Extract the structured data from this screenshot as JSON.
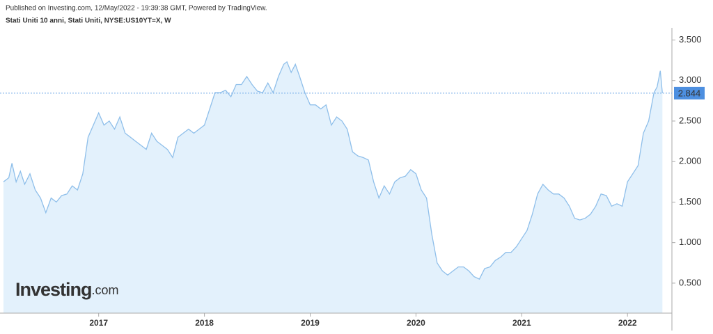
{
  "published": "Published on Investing.com, 12/May/2022 - 19:39:38 GMT, Powered by TradingView.",
  "logo": "Investing",
  "logo_suffix": ".com",
  "chart_data": {
    "type": "area",
    "title": "Stati Uniti 10 anni, Stati Uniti, NYSE:US10YT=X, W",
    "line_color": "#8fbfea",
    "fill_color": "#e3f1fc",
    "x": [
      2016.1,
      2016.15,
      2016.18,
      2016.22,
      2016.26,
      2016.3,
      2016.35,
      2016.4,
      2016.45,
      2016.5,
      2016.55,
      2016.6,
      2016.65,
      2016.7,
      2016.75,
      2016.8,
      2016.85,
      2016.9,
      2016.95,
      2017.0,
      2017.05,
      2017.1,
      2017.15,
      2017.2,
      2017.25,
      2017.3,
      2017.35,
      2017.4,
      2017.45,
      2017.5,
      2017.55,
      2017.6,
      2017.65,
      2017.7,
      2017.75,
      2017.8,
      2017.85,
      2017.9,
      2017.95,
      2018.0,
      2018.05,
      2018.1,
      2018.15,
      2018.2,
      2018.25,
      2018.3,
      2018.35,
      2018.4,
      2018.45,
      2018.5,
      2018.55,
      2018.6,
      2018.65,
      2018.7,
      2018.75,
      2018.78,
      2018.82,
      2018.86,
      2018.9,
      2018.95,
      2019.0,
      2019.05,
      2019.1,
      2019.15,
      2019.2,
      2019.25,
      2019.3,
      2019.35,
      2019.4,
      2019.45,
      2019.5,
      2019.55,
      2019.6,
      2019.65,
      2019.7,
      2019.75,
      2019.8,
      2019.85,
      2019.9,
      2019.95,
      2020.0,
      2020.05,
      2020.1,
      2020.15,
      2020.2,
      2020.25,
      2020.3,
      2020.35,
      2020.4,
      2020.45,
      2020.5,
      2020.55,
      2020.6,
      2020.65,
      2020.7,
      2020.75,
      2020.8,
      2020.85,
      2020.9,
      2020.95,
      2021.0,
      2021.05,
      2021.1,
      2021.15,
      2021.2,
      2021.25,
      2021.3,
      2021.35,
      2021.4,
      2021.45,
      2021.5,
      2021.55,
      2021.6,
      2021.65,
      2021.7,
      2021.75,
      2021.8,
      2021.85,
      2021.9,
      2021.95,
      2022.0,
      2022.05,
      2022.1,
      2022.15,
      2022.2,
      2022.25,
      2022.28,
      2022.31,
      2022.33
    ],
    "values": [
      1.75,
      1.8,
      1.98,
      1.75,
      1.88,
      1.72,
      1.85,
      1.65,
      1.55,
      1.37,
      1.55,
      1.5,
      1.58,
      1.6,
      1.7,
      1.65,
      1.85,
      2.3,
      2.45,
      2.6,
      2.45,
      2.5,
      2.4,
      2.55,
      2.35,
      2.3,
      2.25,
      2.2,
      2.15,
      2.35,
      2.25,
      2.2,
      2.15,
      2.05,
      2.3,
      2.35,
      2.4,
      2.35,
      2.4,
      2.45,
      2.65,
      2.85,
      2.85,
      2.88,
      2.8,
      2.95,
      2.95,
      3.05,
      2.95,
      2.87,
      2.85,
      2.97,
      2.85,
      3.05,
      3.2,
      3.23,
      3.1,
      3.2,
      3.05,
      2.85,
      2.7,
      2.7,
      2.65,
      2.7,
      2.45,
      2.55,
      2.5,
      2.4,
      2.12,
      2.07,
      2.05,
      2.02,
      1.75,
      1.55,
      1.7,
      1.6,
      1.75,
      1.8,
      1.82,
      1.9,
      1.85,
      1.65,
      1.55,
      1.1,
      0.75,
      0.65,
      0.6,
      0.65,
      0.7,
      0.7,
      0.65,
      0.58,
      0.55,
      0.68,
      0.7,
      0.78,
      0.82,
      0.88,
      0.88,
      0.95,
      1.05,
      1.15,
      1.35,
      1.6,
      1.72,
      1.65,
      1.6,
      1.6,
      1.55,
      1.45,
      1.3,
      1.28,
      1.3,
      1.35,
      1.45,
      1.6,
      1.58,
      1.45,
      1.48,
      1.45,
      1.75,
      1.85,
      1.95,
      2.35,
      2.5,
      2.85,
      2.92,
      3.12,
      2.844
    ],
    "last_value": 2.844,
    "xlim": [
      2016.1,
      2022.42
    ],
    "xticks": [
      2017,
      2018,
      2019,
      2020,
      2021,
      2022
    ],
    "ylim": [
      0.13,
      3.65
    ],
    "yticks": [
      {
        "value": 0.5,
        "label": "0.500"
      },
      {
        "value": 1,
        "label": "1.000"
      },
      {
        "value": 1.5,
        "label": "1.500"
      },
      {
        "value": 2,
        "label": "2.000"
      },
      {
        "value": 2.5,
        "label": "2.500"
      },
      {
        "value": 3,
        "label": "3.000"
      },
      {
        "value": 3.5,
        "label": "3.500"
      }
    ],
    "grid": false
  }
}
